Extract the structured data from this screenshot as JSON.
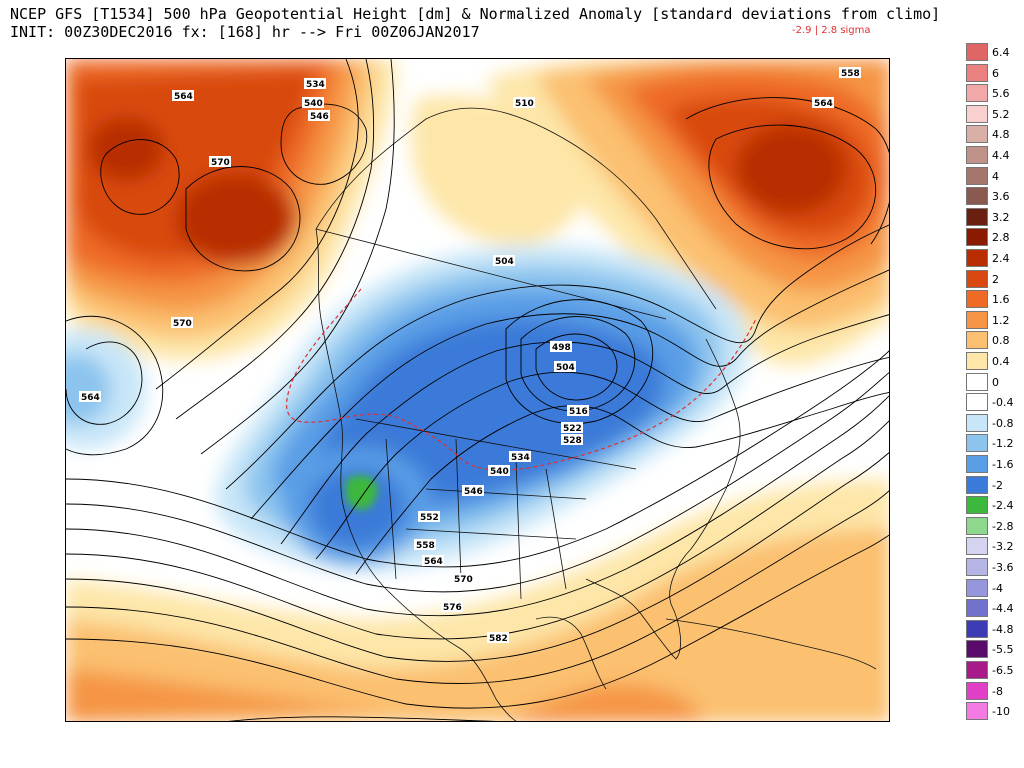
{
  "header": {
    "line1": "NCEP GFS [T1534] 500 hPa Geopotential Height [dm] & Normalized Anomaly [standard deviations from climo]",
    "line2": "INIT: 00Z30DEC2016 fx: [168] hr --> Fri 00Z06JAN2017",
    "range": "-2.9 | 2.8 sigma"
  },
  "colors": {
    "title": "#000000",
    "range": "#e03030",
    "reference_contour": "#e03030",
    "contour": "#000000"
  },
  "legend": {
    "items": [
      {
        "label": "6.4",
        "color": "#e06565"
      },
      {
        "label": "6",
        "color": "#ea8080"
      },
      {
        "label": "5.6",
        "color": "#f2a8a8"
      },
      {
        "label": "5.2",
        "color": "#f8d0d0"
      },
      {
        "label": "4.8",
        "color": "#d9b0a8"
      },
      {
        "label": "4.4",
        "color": "#c0938a"
      },
      {
        "label": "4",
        "color": "#a5766c"
      },
      {
        "label": "3.6",
        "color": "#8a5a50"
      },
      {
        "label": "3.2",
        "color": "#6a2010"
      },
      {
        "label": "2.8",
        "color": "#8a1a00"
      },
      {
        "label": "2.4",
        "color": "#b82e00"
      },
      {
        "label": "2",
        "color": "#d84810"
      },
      {
        "label": "1.6",
        "color": "#ee6a25"
      },
      {
        "label": "1.2",
        "color": "#f59545"
      },
      {
        "label": "0.8",
        "color": "#fbc070"
      },
      {
        "label": "0.4",
        "color": "#fde6a8"
      },
      {
        "label": "0",
        "color": "#ffffff"
      },
      {
        "label": "-0.4",
        "color": "#ffffff"
      },
      {
        "label": "-0.8",
        "color": "#c8e6f8"
      },
      {
        "label": "-1.2",
        "color": "#8cc4ee"
      },
      {
        "label": "-1.6",
        "color": "#5a9ee6"
      },
      {
        "label": "-2",
        "color": "#3a7ad8"
      },
      {
        "label": "-2.4",
        "color": "#3cb83c"
      },
      {
        "label": "-2.8",
        "color": "#8ed88e"
      },
      {
        "label": "-3.2",
        "color": "#d4d4f0"
      },
      {
        "label": "-3.6",
        "color": "#b6b6e6"
      },
      {
        "label": "-4",
        "color": "#9696dc"
      },
      {
        "label": "-4.4",
        "color": "#7272cc"
      },
      {
        "label": "-4.8",
        "color": "#3c3cb4"
      },
      {
        "label": "-5.5",
        "color": "#5a0a6a"
      },
      {
        "label": "-6.5",
        "color": "#a81a8a"
      },
      {
        "label": "-8",
        "color": "#e040c8"
      },
      {
        "label": "-10",
        "color": "#f27ae2"
      }
    ]
  },
  "map": {
    "contour_labels": [
      "534",
      "540",
      "546",
      "564",
      "570",
      "510",
      "504",
      "558",
      "564",
      "570",
      "564",
      "498",
      "504",
      "516",
      "522",
      "528",
      "534",
      "540",
      "546",
      "552",
      "558",
      "564",
      "570",
      "576",
      "582"
    ]
  }
}
